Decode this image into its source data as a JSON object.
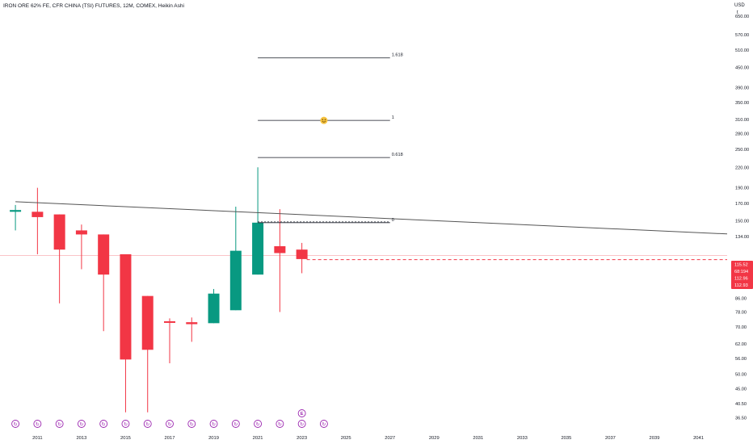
{
  "chart_data": {
    "type": "candlestick",
    "title": "IRON ORE 62% FE, CFR CHINA (TSI) FUTURES, 12M, COMEX, Heikin Ashi",
    "currency": "USD",
    "unit_marker": "t",
    "y_scale": "log",
    "ylim": [
      35,
      730
    ],
    "xlim": [
      2009.3,
      2042.3
    ],
    "y_ticks": [
      650,
      570,
      510,
      450,
      390,
      350,
      310,
      280,
      250,
      220,
      190,
      170,
      150,
      134,
      98,
      86,
      78,
      70,
      62,
      56,
      50,
      45,
      40.5,
      36.5
    ],
    "y_tick_labels": [
      "650.00",
      "570.00",
      "510.00",
      "450.00",
      "390.00",
      "350.00",
      "310.00",
      "280.00",
      "250.00",
      "220.00",
      "190.00",
      "170.00",
      "150.00",
      "134.00",
      "98.00",
      "86.00",
      "78.00",
      "70.00",
      "62.00",
      "56.00",
      "50.00",
      "45.00",
      "40.50",
      "36.50"
    ],
    "x_ticks": [
      2011,
      2013,
      2015,
      2017,
      2019,
      2021,
      2023,
      2025,
      2027,
      2029,
      2031,
      2033,
      2035,
      2037,
      2039,
      2041
    ],
    "x_tick_labels": [
      "2011",
      "2013",
      "2015",
      "2017",
      "2019",
      "2021",
      "2023",
      "2025",
      "2027",
      "2029",
      "2031",
      "2033",
      "2035",
      "2037",
      "2039",
      "2041"
    ],
    "colors": {
      "up": "#089981",
      "down": "#f23645",
      "line": "#131722",
      "guide": "#f7a1a8",
      "event": "#9c27b0",
      "emoji": "#f6c23e"
    },
    "candles": [
      {
        "year": 2010,
        "open": 160,
        "high": 168,
        "low": 140,
        "close": 162
      },
      {
        "year": 2011,
        "open": 160,
        "high": 190,
        "low": 118,
        "close": 154
      },
      {
        "year": 2012,
        "open": 157,
        "high": 157,
        "low": 83,
        "close": 122
      },
      {
        "year": 2013,
        "open": 140,
        "high": 146,
        "low": 106,
        "close": 136
      },
      {
        "year": 2014,
        "open": 136,
        "high": 136,
        "low": 68,
        "close": 102
      },
      {
        "year": 2015,
        "open": 118,
        "high": 118,
        "low": 38,
        "close": 55.5
      },
      {
        "year": 2016,
        "open": 87.5,
        "high": 87.5,
        "low": 38,
        "close": 59.5
      },
      {
        "year": 2017,
        "open": 73,
        "high": 74.5,
        "low": 54,
        "close": 72.5
      },
      {
        "year": 2018,
        "open": 72.5,
        "high": 75,
        "low": 63,
        "close": 71.5
      },
      {
        "year": 2019,
        "open": 72,
        "high": 92,
        "low": 72,
        "close": 89
      },
      {
        "year": 2020,
        "open": 79,
        "high": 166,
        "low": 79,
        "close": 121
      },
      {
        "year": 2021,
        "open": 102,
        "high": 220,
        "low": 102,
        "close": 148
      },
      {
        "year": 2022,
        "open": 125,
        "high": 163,
        "low": 78,
        "close": 119
      },
      {
        "year": 2023,
        "open": 122,
        "high": 128,
        "low": 103,
        "close": 114
      }
    ],
    "trendline": {
      "x1": 2010.0,
      "y1": 172,
      "x2": 2042.3,
      "y2": 136.5
    },
    "fib_levels": [
      {
        "label": "1.618",
        "value": 482
      },
      {
        "label": "1",
        "value": 308
      },
      {
        "label": "0.618",
        "value": 236
      },
      {
        "label": "0",
        "value": 148
      }
    ],
    "fib_x_range": [
      2021.0,
      2027.0
    ],
    "current_price_line": 113.5,
    "horizontal_guide": 117,
    "price_labels": [
      "115.52",
      "68:194",
      "112.96",
      "112.93"
    ],
    "events": [
      2010,
      2011,
      2012,
      2013,
      2014,
      2015,
      2016,
      2017,
      2018,
      2019,
      2020,
      2021,
      2022,
      2023,
      2024
    ],
    "event_symbol": "↻",
    "earnings_year": 2023,
    "earnings_symbol": "E",
    "emoji_year": 2024.0,
    "emoji_value": 308
  }
}
